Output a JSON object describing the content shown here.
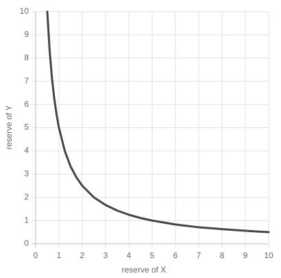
{
  "chart_data": {
    "type": "line",
    "xlabel": "reserve of X",
    "ylabel": "reserve of Y",
    "x": [
      0.5,
      0.6,
      0.7,
      0.8,
      0.9,
      1,
      1.25,
      1.5,
      1.75,
      2,
      2.5,
      3,
      3.5,
      4,
      4.5,
      5,
      6,
      7,
      8,
      9,
      10
    ],
    "values": [
      10,
      8.33,
      7.14,
      6.25,
      5.56,
      5,
      4,
      3.33,
      2.86,
      2.5,
      2,
      1.67,
      1.43,
      1.25,
      1.11,
      1,
      0.83,
      0.71,
      0.63,
      0.56,
      0.5
    ],
    "color": "#444444",
    "xlim": [
      0,
      10
    ],
    "ylim": [
      0,
      10
    ],
    "xticks": [
      0,
      1,
      2,
      3,
      4,
      5,
      6,
      7,
      8,
      9,
      10
    ],
    "yticks": [
      0,
      1,
      2,
      3,
      4,
      5,
      6,
      7,
      8,
      9,
      10
    ],
    "grid": true
  }
}
